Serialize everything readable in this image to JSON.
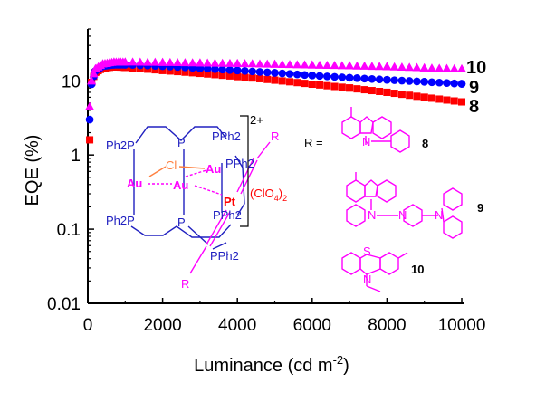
{
  "chart_data": {
    "type": "scatter",
    "xlabel": "Luminance (cd m",
    "xlabel_sup": "-2",
    "xlabel_end": ")",
    "ylabel": "EQE (%)",
    "y_scale": "log",
    "xlim": [
      0,
      10000
    ],
    "ylim": [
      0.01,
      50
    ],
    "x_ticks": [
      "0",
      "2000",
      "4000",
      "6000",
      "8000",
      "10000"
    ],
    "y_ticks": [
      "0.01",
      "0.1",
      "1",
      "10"
    ],
    "series": [
      {
        "name": "8",
        "color": "#ff0000",
        "marker": "square",
        "x": [
          50,
          100,
          200,
          400,
          700,
          1000,
          2000,
          3000,
          4000,
          5000,
          6000,
          7000,
          8000,
          9000,
          10000
        ],
        "y": [
          1.6,
          9.5,
          13.0,
          14.8,
          15.5,
          15.2,
          13.8,
          12.6,
          11.4,
          10.2,
          9.0,
          8.0,
          7.0,
          6.0,
          5.2
        ]
      },
      {
        "name": "9",
        "color": "#0000ff",
        "marker": "circle",
        "x": [
          50,
          100,
          200,
          400,
          700,
          1000,
          2000,
          3000,
          4000,
          5000,
          6000,
          7000,
          8000,
          9000,
          10000
        ],
        "y": [
          3.0,
          9.0,
          13.5,
          15.8,
          16.5,
          16.5,
          15.8,
          14.8,
          13.8,
          12.8,
          11.8,
          11.0,
          10.3,
          9.7,
          9.1
        ]
      },
      {
        "name": "10",
        "color": "#ff00ff",
        "marker": "triangle",
        "x": [
          50,
          100,
          200,
          400,
          700,
          1000,
          2000,
          3000,
          4000,
          5000,
          6000,
          7000,
          8000,
          9000,
          10000
        ],
        "y": [
          4.5,
          10.0,
          14.5,
          17.0,
          18.0,
          18.0,
          17.8,
          17.5,
          17.2,
          16.8,
          16.4,
          16.0,
          15.6,
          15.0,
          14.5
        ]
      }
    ],
    "grid": false,
    "legend": "none (series numbers printed at right end of curves)"
  },
  "inset": {
    "r_equals": "R =",
    "charge": "2+",
    "counterion": "(ClO",
    "counterion_sub": "4",
    "counterion_close": ")",
    "counterion_sub2": "2",
    "atoms": {
      "au": "Au",
      "pt": "Pt",
      "cl": "Cl",
      "p": "P",
      "ph2p": "Ph",
      "r": "R",
      "n": "N",
      "s": "S"
    },
    "phosphines": [
      "Ph2P",
      "PPh2",
      "PPh2",
      "Ph2P",
      "PPh2",
      "PPh2"
    ],
    "compound_labels": [
      "8",
      "9",
      "10"
    ],
    "colors": {
      "au": "#ff00ff",
      "pt": "#ff0000",
      "cl": "#ff8040",
      "phosphine": "#2020c0",
      "substituent": "#ff00ff",
      "counterion": "#ff0000"
    }
  }
}
